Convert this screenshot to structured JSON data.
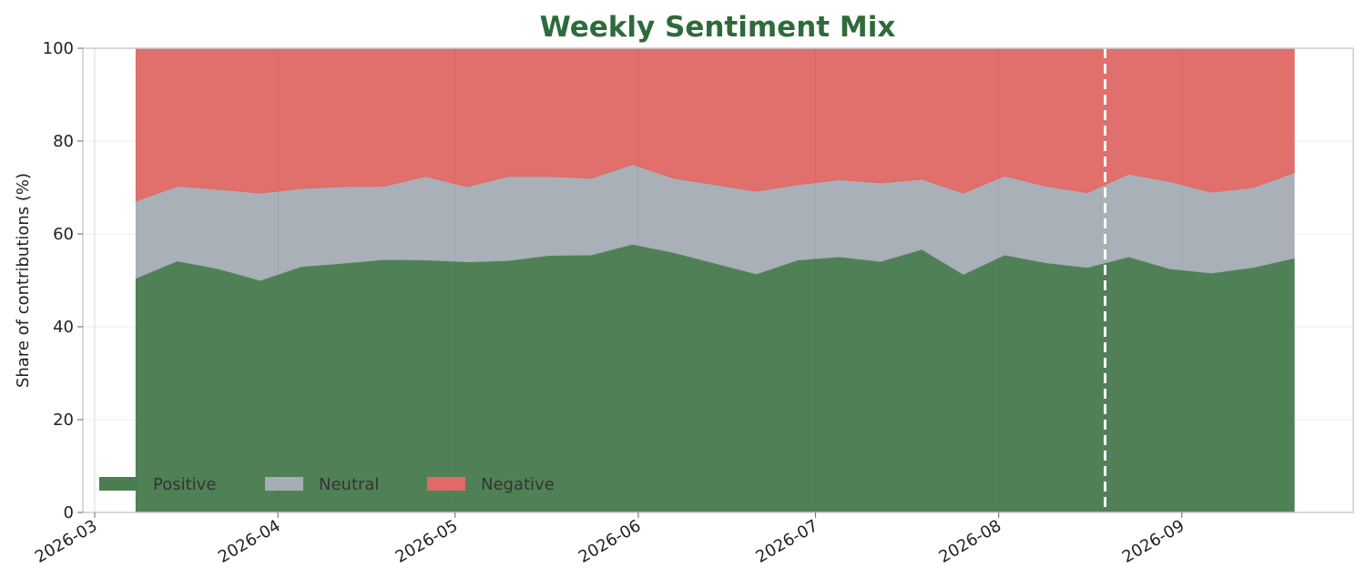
{
  "chart_data": {
    "type": "area",
    "stacked": true,
    "title": "Weekly Sentiment Mix",
    "ylabel": "Share of contributions (%)",
    "xlabel": "",
    "ylim": [
      0,
      100
    ],
    "xlim": [
      "2026-02-27",
      "2026-09-30"
    ],
    "yticks": [
      0,
      20,
      40,
      60,
      80,
      100
    ],
    "xticks": [
      {
        "date": "2026-03-01",
        "label": "2026-03"
      },
      {
        "date": "2026-04-01",
        "label": "2026-04"
      },
      {
        "date": "2026-05-01",
        "label": "2026-05"
      },
      {
        "date": "2026-06-01",
        "label": "2026-06"
      },
      {
        "date": "2026-07-01",
        "label": "2026-07"
      },
      {
        "date": "2026-08-01",
        "label": "2026-08"
      },
      {
        "date": "2026-09-01",
        "label": "2026-09"
      }
    ],
    "grid": true,
    "legend_position": "lower-left",
    "x": [
      "2026-03-08",
      "2026-03-15",
      "2026-03-22",
      "2026-03-29",
      "2026-04-05",
      "2026-04-12",
      "2026-04-19",
      "2026-04-26",
      "2026-05-03",
      "2026-05-10",
      "2026-05-17",
      "2026-05-24",
      "2026-05-31",
      "2026-06-07",
      "2026-06-14",
      "2026-06-21",
      "2026-06-28",
      "2026-07-05",
      "2026-07-12",
      "2026-07-19",
      "2026-07-26",
      "2026-08-02",
      "2026-08-09",
      "2026-08-16",
      "2026-08-23",
      "2026-08-30",
      "2026-09-06",
      "2026-09-13",
      "2026-09-20"
    ],
    "series": [
      {
        "name": "Positive",
        "color": "#4a7d51",
        "values": [
          50.5,
          54.2,
          52.5,
          50.0,
          53.0,
          53.7,
          54.5,
          54.4,
          54.0,
          54.3,
          55.4,
          55.5,
          57.8,
          56.0,
          53.7,
          51.4,
          54.4,
          55.1,
          54.1,
          56.7,
          51.3,
          55.5,
          53.8,
          52.8,
          55.1,
          52.5,
          51.6,
          52.8,
          54.8
        ]
      },
      {
        "name": "Neutral",
        "color": "#a7adb6",
        "values": [
          16.6,
          16.1,
          17.1,
          18.8,
          16.8,
          16.5,
          15.8,
          18.0,
          16.2,
          18.1,
          17.0,
          16.5,
          17.2,
          16.0,
          16.9,
          17.8,
          16.2,
          16.6,
          16.9,
          15.1,
          17.5,
          17.0,
          16.5,
          16.1,
          17.8,
          18.8,
          17.4,
          17.2,
          18.4
        ]
      },
      {
        "name": "Negative",
        "color": "#e06a66",
        "values": [
          32.9,
          29.7,
          30.4,
          31.2,
          30.2,
          29.8,
          29.7,
          27.6,
          29.8,
          27.6,
          27.6,
          28.0,
          25.0,
          28.0,
          29.4,
          30.8,
          29.4,
          28.3,
          29.0,
          28.2,
          31.2,
          27.5,
          29.7,
          31.1,
          27.1,
          28.7,
          31.0,
          30.0,
          26.8
        ]
      }
    ],
    "annotations": [
      {
        "type": "vline",
        "x": "2026-08-19",
        "style": "dashed",
        "color": "#ffffff"
      }
    ]
  }
}
